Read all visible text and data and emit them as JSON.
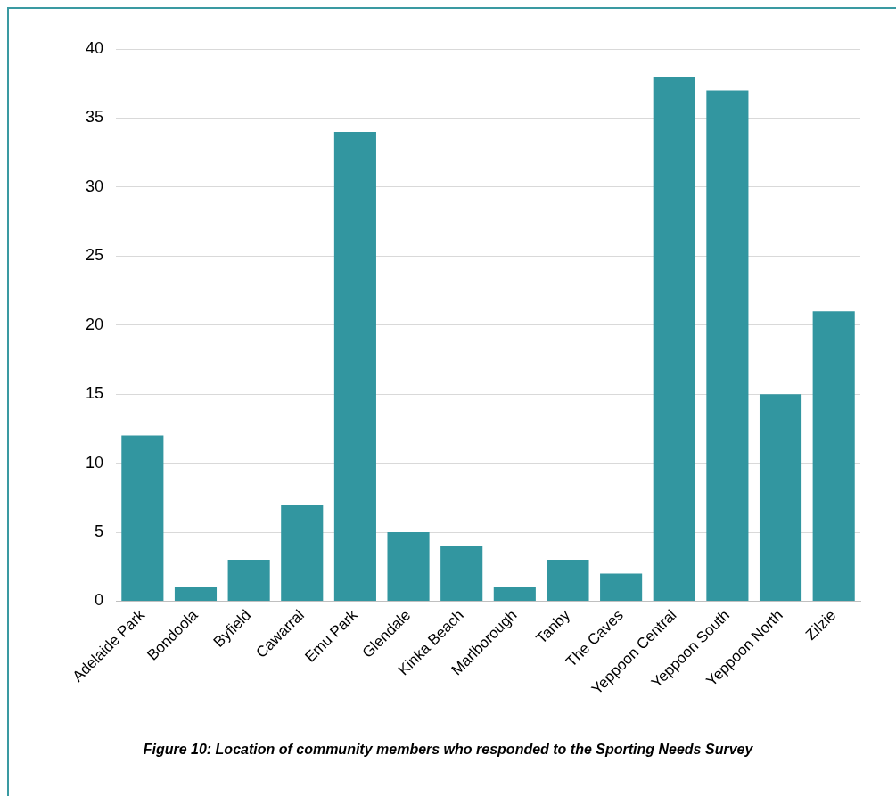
{
  "chart_data": {
    "type": "bar",
    "categories": [
      "Adelaide Park",
      "Bondoola",
      "Byfield",
      "Cawarral",
      "Emu Park",
      "Glendale",
      "Kinka Beach",
      "Marlborough",
      "Tanby",
      "The Caves",
      "Yeppoon Central",
      "Yeppoon South",
      "Yeppoon North",
      "Zilzie"
    ],
    "values": [
      12,
      1,
      3,
      7,
      34,
      5,
      4,
      1,
      3,
      2,
      38,
      37,
      15,
      21
    ],
    "color": "#3296a0",
    "ylim": [
      0,
      40
    ],
    "yticks": [
      0,
      5,
      10,
      15,
      20,
      25,
      30,
      35,
      40
    ],
    "grid": "y",
    "annotations": [
      "Figure 10: Location of community members who responded to the Sporting Needs Survey"
    ]
  }
}
